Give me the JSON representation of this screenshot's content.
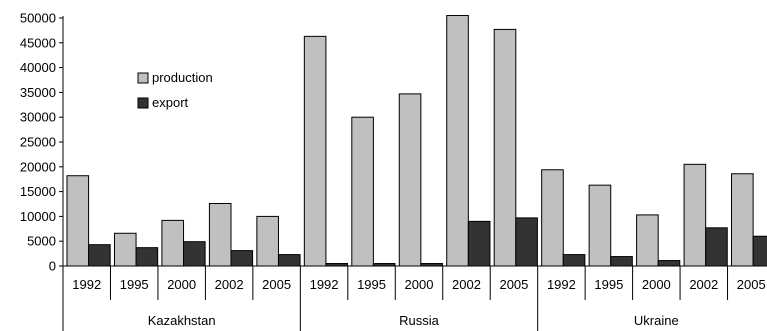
{
  "chart_data": {
    "type": "bar",
    "groups": [
      "Kazakhstan",
      "Russia",
      "Ukraine"
    ],
    "years": [
      "1992",
      "1995",
      "2000",
      "2002",
      "2005"
    ],
    "series": [
      {
        "name": "production",
        "color": "#c0c0c0",
        "values": [
          18200,
          6600,
          9200,
          12600,
          10000,
          46300,
          30000,
          34700,
          50500,
          47700,
          19400,
          16300,
          10300,
          20500,
          18600
        ]
      },
      {
        "name": "export",
        "color": "#333333",
        "values": [
          4300,
          3700,
          4900,
          3100,
          2300,
          500,
          500,
          500,
          9000,
          9700,
          2300,
          1900,
          1100,
          7700,
          6000
        ]
      }
    ],
    "y_ticks": [
      "0",
      "5000",
      "10000",
      "15000",
      "20000",
      "25000",
      "30000",
      "35000",
      "40000",
      "45000",
      "50000"
    ],
    "ylim": [
      0,
      50000
    ],
    "grid": false,
    "legend_position": "top-left"
  }
}
